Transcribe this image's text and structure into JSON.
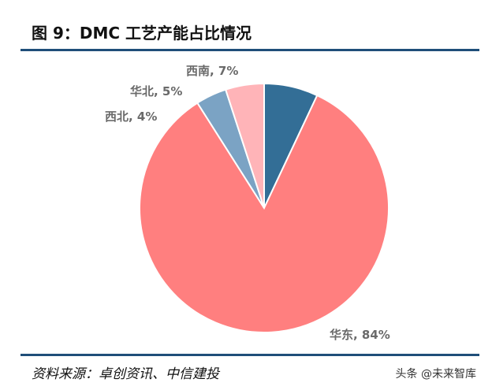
{
  "figure": {
    "title": "图 9：DMC 工艺产能占比情况",
    "source": "资料来源：卓创资讯、中信建投",
    "watermark": "头条 @未来智库"
  },
  "chart_data": {
    "type": "pie",
    "title": "图 9：DMC 工艺产能占比情况",
    "categories": [
      "西南",
      "华东",
      "西北",
      "华北"
    ],
    "values": [
      7,
      84,
      4,
      5
    ],
    "labels": [
      "西南, 7%",
      "华东, 84%",
      "西北, 4%",
      "华北, 5%"
    ],
    "colors": [
      "#336e96",
      "#ff7f7f",
      "#7ba3c4",
      "#ffb4b8"
    ],
    "start_angle_deg": 0,
    "direction": "clockwise-from-top"
  }
}
